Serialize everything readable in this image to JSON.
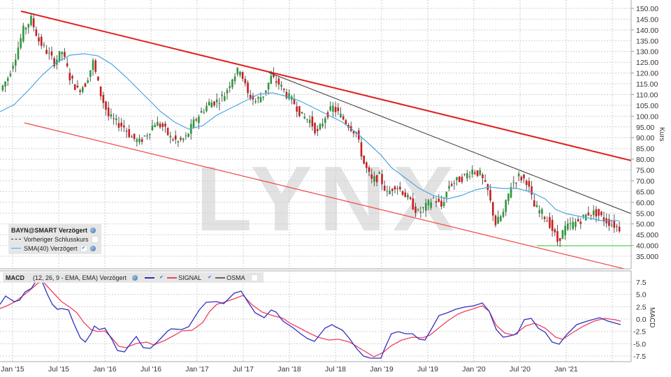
{
  "chart_data": [
    {
      "type": "candlestick",
      "title": "BAYN@SMART Verzögert",
      "ylabel": "Kurs",
      "ylim": [
        30,
        152
      ],
      "y_ticks": [
        "150.00",
        "145.00",
        "140.00",
        "135.00",
        "130.00",
        "125.00",
        "120.00",
        "115.00",
        "110.00",
        "105.00",
        "100.00",
        "95.00",
        "90.00",
        "85.00",
        "80.00",
        "75.00",
        "70.00",
        "65.00",
        "60.00",
        "55.00",
        "50.00",
        "45.000",
        "40.000",
        "35.000"
      ],
      "x_ticks": [
        "Jan '15",
        "Jul '15",
        "Jan '16",
        "Jul '16",
        "Jan '17",
        "Jul '17",
        "Jan '18",
        "Jul '18",
        "Jan '19",
        "Jul '19",
        "Jan '20",
        "Jul '20",
        "Jan '21"
      ],
      "grid": true,
      "watermark": "LYNX",
      "legend": [
        {
          "label": "BAYN@SMART Verzögert",
          "style": "title"
        },
        {
          "label": "Vorheriger Schlusskurs",
          "style": "dashed",
          "color": "#333333",
          "checked": false
        },
        {
          "label": "SMA(40) Verzögert",
          "style": "solid",
          "color": "#4aa8e0",
          "checked": true
        }
      ],
      "series": [
        {
          "name": "Price (approx. weekly close)",
          "x": [
            "2014-11",
            "2015-01",
            "2015-02",
            "2015-03",
            "2015-04",
            "2015-05",
            "2015-06",
            "2015-07",
            "2015-08",
            "2015-09",
            "2015-10",
            "2015-11",
            "2015-12",
            "2016-01",
            "2016-02",
            "2016-03",
            "2016-04",
            "2016-05",
            "2016-06",
            "2016-07",
            "2016-08",
            "2016-09",
            "2016-10",
            "2016-11",
            "2016-12",
            "2017-01",
            "2017-02",
            "2017-03",
            "2017-04",
            "2017-05",
            "2017-06",
            "2017-07",
            "2017-08",
            "2017-09",
            "2017-10",
            "2017-11",
            "2017-12",
            "2018-01",
            "2018-02",
            "2018-03",
            "2018-04",
            "2018-05",
            "2018-06",
            "2018-07",
            "2018-08",
            "2018-09",
            "2018-10",
            "2018-11",
            "2018-12",
            "2019-01",
            "2019-02",
            "2019-03",
            "2019-04",
            "2019-05",
            "2019-06",
            "2019-07",
            "2019-08",
            "2019-09",
            "2019-10",
            "2019-11",
            "2019-12",
            "2020-01",
            "2020-02",
            "2020-03",
            "2020-04",
            "2020-05",
            "2020-06",
            "2020-07",
            "2020-08",
            "2020-09",
            "2020-10",
            "2020-11",
            "2020-12",
            "2021-01",
            "2021-02",
            "2021-03",
            "2021-04",
            "2021-05",
            "2021-06",
            "2021-07",
            "2021-08"
          ],
          "values": [
            112,
            118,
            128,
            140,
            145,
            135,
            130,
            125,
            130,
            118,
            112,
            115,
            125,
            110,
            100,
            97,
            95,
            90,
            88,
            92,
            97,
            95,
            90,
            88,
            90,
            97,
            102,
            106,
            107,
            110,
            118,
            122,
            110,
            107,
            110,
            118,
            115,
            110,
            106,
            100,
            98,
            92,
            100,
            104,
            100,
            96,
            92,
            78,
            70,
            72,
            64,
            68,
            65,
            60,
            55,
            58,
            62,
            58,
            68,
            70,
            72,
            75,
            73,
            65,
            50,
            55,
            68,
            72,
            70,
            58,
            55,
            50,
            42,
            48,
            50,
            52,
            55,
            55,
            52,
            50,
            48
          ]
        },
        {
          "name": "SMA(40) Verzögert",
          "color": "#4aa8e0",
          "points": [
            [
              0,
              102
            ],
            [
              20,
              110
            ],
            [
              40,
              118
            ],
            [
              60,
              125
            ],
            [
              90,
              130
            ],
            [
              120,
              128
            ],
            [
              150,
              118
            ],
            [
              180,
              112
            ],
            [
              210,
              102
            ],
            [
              240,
              97
            ],
            [
              270,
              95
            ],
            [
              300,
              100
            ],
            [
              340,
              110
            ],
            [
              370,
              115
            ],
            [
              400,
              113
            ],
            [
              430,
              108
            ],
            [
              470,
              100
            ],
            [
              510,
              90
            ],
            [
              545,
              78
            ],
            [
              580,
              68
            ],
            [
              615,
              62
            ],
            [
              650,
              64
            ],
            [
              690,
              68
            ],
            [
              730,
              66
            ],
            [
              760,
              62
            ],
            [
              800,
              56
            ],
            [
              840,
              52
            ],
            [
              885,
              50
            ]
          ]
        },
        {
          "name": "Upper trendline",
          "color": "#e02020",
          "from": {
            "x": "2014-11",
            "y": 148.7
          },
          "to": {
            "x": "2021-08",
            "y": 80
          }
        },
        {
          "name": "Lower trendline",
          "color": "#f04040",
          "from": {
            "x": "2014-12",
            "y": 97
          },
          "to": {
            "x": "2021-08",
            "y": 31
          }
        },
        {
          "name": "Secondary resistance",
          "color": "#333333",
          "from": {
            "x": "2017-11",
            "y": 119
          },
          "to": {
            "x": "2021-08",
            "y": 55
          }
        },
        {
          "name": "Support",
          "color": "#33cc33",
          "from": {
            "x": "2020-10",
            "y": 40
          },
          "to": {
            "x": "2021-08",
            "y": 40
          }
        }
      ]
    },
    {
      "type": "line",
      "title": "MACD (12, 26, 9 - EMA, EMA) Verzögert",
      "ylabel": "MACD",
      "ylim": [
        -8.5,
        8.5
      ],
      "y_ticks": [
        "7.5",
        "5.0",
        "2.5",
        "0.0",
        "-2.5",
        "-5.0",
        "-7.5"
      ],
      "grid": true,
      "legend": [
        {
          "label": "MACD",
          "color": "#3030c0",
          "checked": true
        },
        {
          "label": "SIGNAL",
          "color": "#f04060",
          "checked": true
        },
        {
          "label": "OSMA",
          "color": "#666666",
          "checked": false
        }
      ],
      "series": [
        {
          "name": "MACD",
          "color": "#3030c0",
          "x_months_from_2014_11": [
            0,
            1,
            2,
            3,
            4,
            5,
            6,
            7,
            8,
            9,
            10,
            11,
            12,
            13,
            14,
            15,
            16,
            17,
            18,
            19,
            20,
            21,
            22,
            23,
            24,
            25,
            26,
            27,
            28,
            29,
            30,
            31,
            32,
            33,
            34,
            35,
            36,
            37,
            38,
            39,
            40,
            41,
            42,
            43,
            44,
            45,
            46,
            47,
            48,
            49,
            50,
            51,
            52,
            53,
            54,
            55,
            56,
            57,
            58,
            59,
            60,
            61,
            62,
            63,
            64,
            65,
            66,
            67,
            68,
            69,
            70,
            71,
            72,
            73,
            74,
            75,
            76,
            77,
            78,
            79,
            80
          ],
          "values": [
            2.5,
            4.5,
            3.5,
            5.5,
            8,
            7,
            3.5,
            1.5,
            1,
            -3,
            -5,
            -2.5,
            -3,
            -6,
            -7,
            -5,
            -4,
            -6,
            -5.5,
            -3,
            -2,
            -2.2,
            -2,
            0,
            3,
            3.8,
            3.5,
            4,
            5.5,
            4,
            0,
            -1.5,
            -1,
            -3,
            -4,
            -4.5,
            -5.5,
            -4,
            -3,
            -3.5,
            -1,
            -1.5,
            -2,
            -4.5,
            -7,
            -8,
            -7,
            -4,
            -2.5,
            -3,
            -3.5,
            -4,
            -3,
            -2,
            -0.5,
            2,
            2.5,
            2,
            2.5,
            3,
            3,
            2,
            -3,
            -4,
            -4,
            -2,
            0,
            0,
            -1,
            -2,
            -2.5,
            -4,
            -3,
            -1,
            0.5,
            0.5,
            0.8,
            1.2,
            0.5,
            -0.5,
            -1
          ]
        },
        {
          "name": "SIGNAL",
          "color": "#f04060",
          "values": [
            1.5,
            3,
            3.5,
            5,
            7,
            6.5,
            4.5,
            2.5,
            1,
            -1.5,
            -3.5,
            -3,
            -3,
            -4.5,
            -6,
            -5.5,
            -4.5,
            -5,
            -5,
            -3.5,
            -2.5,
            -2.2,
            -2,
            -1,
            1.5,
            3,
            3.5,
            4,
            5,
            4.5,
            1.5,
            -0.5,
            -1,
            -2.5,
            -3.5,
            -4,
            -4.8,
            -4.5,
            -3.5,
            -3.5,
            -2,
            -1.8,
            -2,
            -3.5,
            -5.5,
            -7,
            -7.5,
            -5,
            -3.5,
            -3,
            -3.2,
            -3.5,
            -3.2,
            -2.5,
            -1,
            1,
            2,
            2,
            2.2,
            2.5,
            2.8,
            2.2,
            -0.5,
            -2.5,
            -3.5,
            -2.5,
            -1,
            0,
            -0.5,
            -1.5,
            -2,
            -3.5,
            -3.5,
            -2,
            0,
            0.2,
            0.5,
            0.8,
            0.5,
            0,
            -0.2
          ]
        }
      ]
    }
  ],
  "legends": {
    "price": {
      "title": "BAYN@SMART Verzögert",
      "prev_close": "Vorheriger Schlusskurs",
      "sma": "SMA(40) Verzögert"
    },
    "macd": {
      "title": "MACD",
      "params": "(12, 26, 9 - EMA, EMA) Verzögert",
      "signal": "SIGNAL",
      "osma": "OSMA"
    }
  },
  "axes": {
    "price_label": "Kurs",
    "macd_label": "MACD"
  },
  "watermark": "LYNX",
  "colors": {
    "up_candle": "#2a9a3a",
    "down_candle": "#c81e1e",
    "wick": "#555555",
    "sma": "#4aa8e0",
    "upper_trend": "#e02020",
    "lower_trend": "#f04848",
    "secondary_trend": "#333333",
    "support": "#33cc33",
    "macd": "#3030c0",
    "signal": "#f04060"
  }
}
